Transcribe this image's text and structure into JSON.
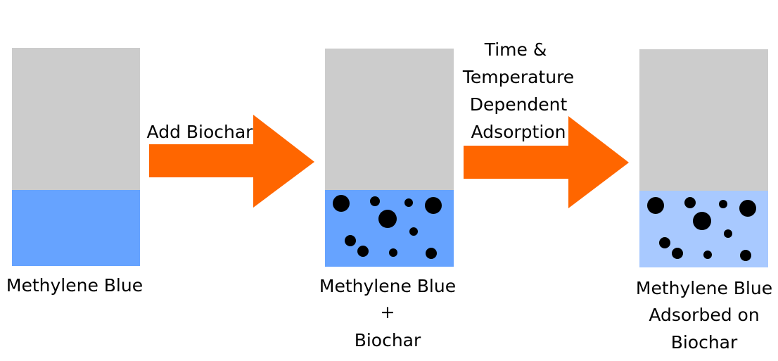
{
  "colors": {
    "empty_headspace": "#cccccc",
    "methylene_blue_solution": "#66a3ff",
    "adsorbed_solution": "#a8c9ff",
    "biochar_particle": "#000000",
    "arrow": "#ff6600"
  },
  "beakers": [
    {
      "label_lines": [
        "Methylene Blue"
      ]
    },
    {
      "label_lines": [
        "Methylene Blue",
        "+",
        "Biochar"
      ]
    },
    {
      "label_lines": [
        "Methylene Blue",
        "Adsorbed on",
        "Biochar"
      ]
    }
  ],
  "arrows": [
    {
      "label_lines": [
        "Add Biochar"
      ]
    },
    {
      "label_lines": [
        "Time &",
        "Temperature",
        "Dependent",
        "Adsorption"
      ]
    }
  ]
}
